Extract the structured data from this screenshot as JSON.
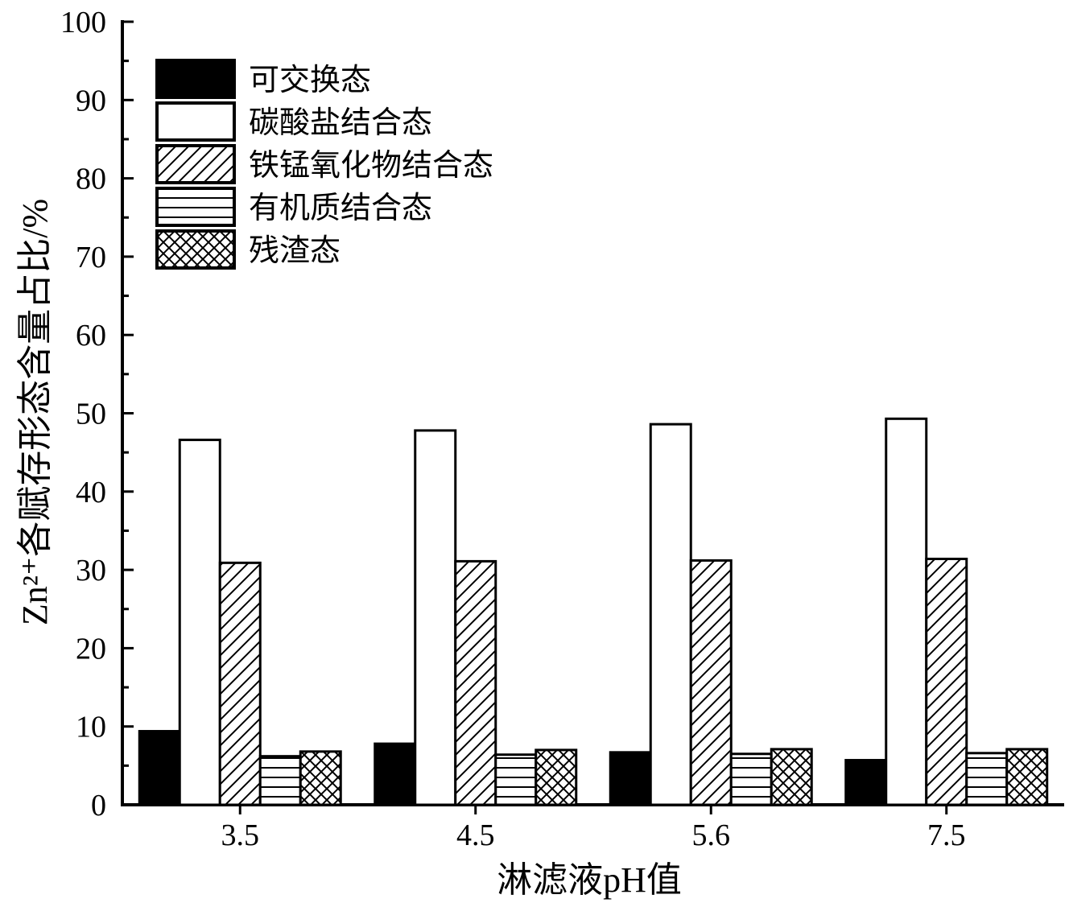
{
  "chart_data": {
    "type": "bar",
    "xlabel": "淋滤液pH值",
    "ylabel": "Zn²⁺各赋存形态含量占比/%",
    "ylim": [
      0,
      100
    ],
    "yticks": [
      "0",
      "10",
      "20",
      "30",
      "40",
      "50",
      "60",
      "70",
      "80",
      "90",
      "100"
    ],
    "categories": [
      "3.5",
      "4.5",
      "5.6",
      "7.5"
    ],
    "legend_position": "top-left",
    "series": [
      {
        "name": "可交换态",
        "pattern": "solid-black",
        "values": [
          9.4,
          7.8,
          6.7,
          5.7
        ]
      },
      {
        "name": "碳酸盐结合态",
        "pattern": "empty-white",
        "values": [
          46.6,
          47.8,
          48.6,
          49.3
        ]
      },
      {
        "name": "铁锰氧化物结合态",
        "pattern": "diagonal-hatch",
        "values": [
          30.9,
          31.1,
          31.2,
          31.4
        ]
      },
      {
        "name": "有机质结合态",
        "pattern": "horizontal-lines",
        "values": [
          6.2,
          6.4,
          6.5,
          6.6
        ]
      },
      {
        "name": "残渣态",
        "pattern": "cross-hatch",
        "values": [
          6.8,
          7.0,
          7.1,
          7.1
        ]
      }
    ]
  }
}
